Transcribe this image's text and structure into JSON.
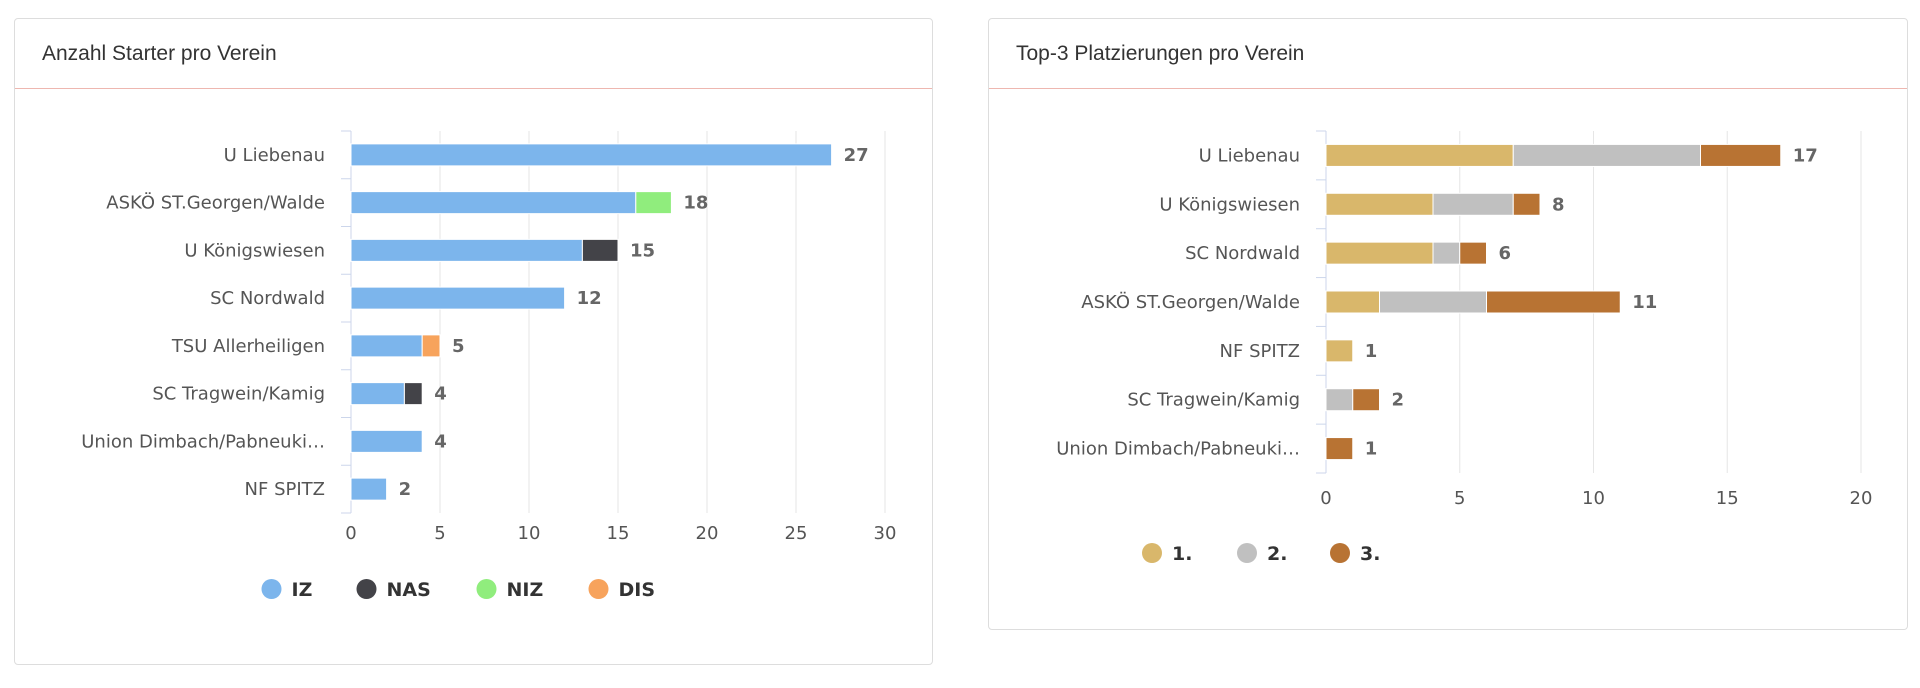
{
  "chart_data": [
    {
      "type": "bar",
      "orientation": "horizontal",
      "stacked": true,
      "title": "Anzahl Starter pro Verein",
      "categories": [
        "U Liebenau",
        "ASKÖ ST.Georgen/Walde",
        "U Königswiesen",
        "SC Nordwald",
        "TSU Allerheiligen",
        "SC Tragwein/Kamig",
        "Union Dimbach/Pabneuki…",
        "NF SPITZ"
      ],
      "series": [
        {
          "name": "IZ",
          "color": "#7cb5ec",
          "values": [
            27,
            16,
            13,
            12,
            4,
            3,
            4,
            2
          ]
        },
        {
          "name": "NAS",
          "color": "#434348",
          "values": [
            0,
            0,
            2,
            0,
            0,
            1,
            0,
            0
          ]
        },
        {
          "name": "NIZ",
          "color": "#90ed7d",
          "values": [
            0,
            2,
            0,
            0,
            0,
            0,
            0,
            0
          ]
        },
        {
          "name": "DIS",
          "color": "#f7a35c",
          "values": [
            0,
            0,
            0,
            0,
            1,
            0,
            0,
            0
          ]
        }
      ],
      "totals": [
        27,
        18,
        15,
        12,
        5,
        4,
        4,
        2
      ],
      "xlim": [
        0,
        30
      ],
      "xticks": [
        0,
        5,
        10,
        15,
        20,
        25,
        30
      ],
      "grid": true,
      "legend_position": "bottom"
    },
    {
      "type": "bar",
      "orientation": "horizontal",
      "stacked": true,
      "title": "Top-3 Platzierungen pro Verein",
      "categories": [
        "U Liebenau",
        "U Königswiesen",
        "SC Nordwald",
        "ASKÖ ST.Georgen/Walde",
        "NF SPITZ",
        "SC Tragwein/Kamig",
        "Union Dimbach/Pabneuki…"
      ],
      "series": [
        {
          "name": "1.",
          "color": "#d9b76b",
          "values": [
            7,
            4,
            4,
            2,
            1,
            0,
            0
          ]
        },
        {
          "name": "2.",
          "color": "#c0c0c0",
          "values": [
            7,
            3,
            1,
            4,
            0,
            1,
            0
          ]
        },
        {
          "name": "3.",
          "color": "#b87333",
          "values": [
            3,
            1,
            1,
            5,
            0,
            1,
            1
          ]
        }
      ],
      "totals": [
        17,
        8,
        6,
        11,
        1,
        2,
        1
      ],
      "xlim": [
        0,
        20
      ],
      "xticks": [
        0,
        5,
        10,
        15,
        20
      ],
      "grid": true,
      "legend_position": "bottom"
    }
  ]
}
